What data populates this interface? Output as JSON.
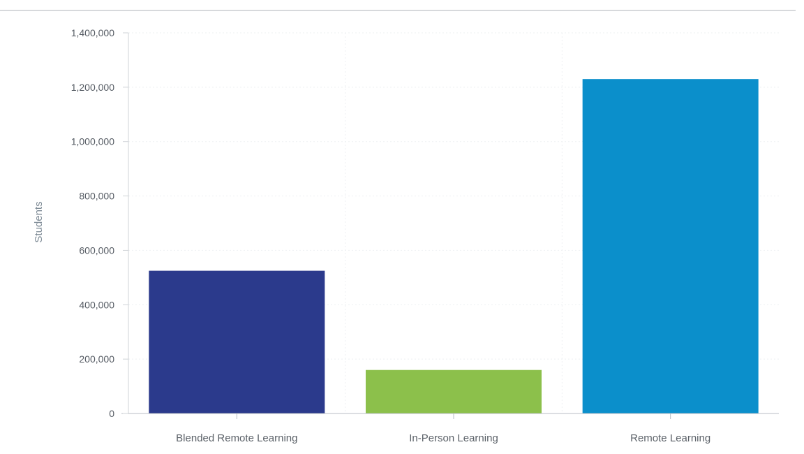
{
  "chart_data": {
    "type": "bar",
    "title": "",
    "xlabel": "",
    "ylabel": "Students",
    "categories": [
      "Blended Remote Learning",
      "In-Person Learning",
      "Remote Learning"
    ],
    "values": [
      525000,
      160000,
      1230000
    ],
    "ylim": [
      0,
      1400000
    ],
    "yticks": [
      0,
      200000,
      400000,
      600000,
      800000,
      1000000,
      1200000,
      1400000
    ],
    "ytick_labels": [
      "0",
      "200,000",
      "400,000",
      "600,000",
      "800,000",
      "1,000,000",
      "1,200,000",
      "1,400,000"
    ],
    "colors": [
      "#2b3a8c",
      "#8cc04b",
      "#0b8fcb"
    ],
    "grid": true,
    "legend": "none"
  }
}
